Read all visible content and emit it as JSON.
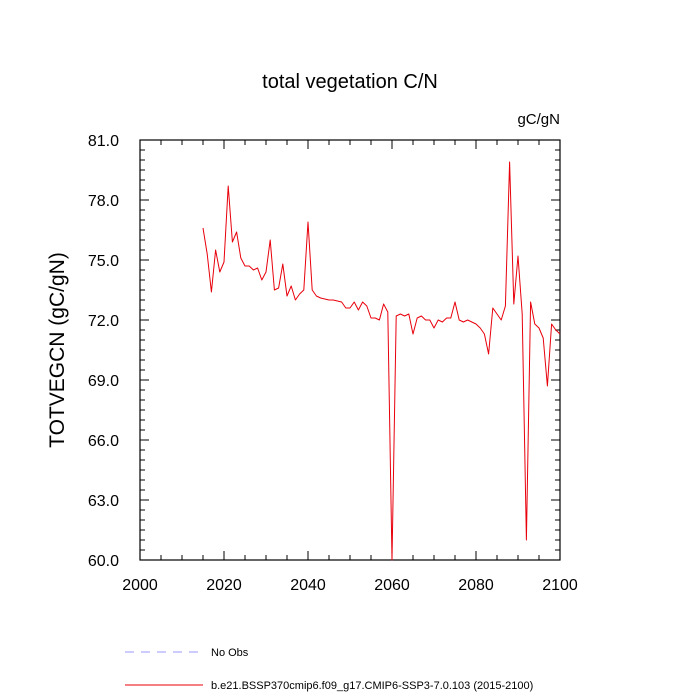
{
  "chart_data": {
    "type": "line",
    "title": "total vegetation C/N",
    "units": "gC/gN",
    "ylabel": "TOTVEGCN  (gC/gN)",
    "xlabel": "",
    "xlim": [
      2000,
      2100
    ],
    "ylim": [
      60,
      81
    ],
    "x_ticks": [
      2000,
      2020,
      2040,
      2060,
      2080,
      2100
    ],
    "x_tick_labels": [
      "2000",
      "2020",
      "2040",
      "2060",
      "2080",
      "2100"
    ],
    "y_ticks": [
      60,
      63,
      66,
      69,
      72,
      75,
      78,
      81
    ],
    "y_tick_labels": [
      "60.0",
      "63.0",
      "66.0",
      "69.0",
      "72.0",
      "75.0",
      "78.0",
      "81.0"
    ],
    "grid": false,
    "legend_position": "bottom",
    "legend": [
      {
        "label": "No Obs",
        "color": "#9999ff",
        "style": "dashed"
      },
      {
        "label": "b.e21.BSSP370cmip6.f09_g17.CMIP6-SSP3-7.0.103 (2015-2100)",
        "color": "#e8000b",
        "style": "solid"
      }
    ],
    "series": [
      {
        "name": "b.e21.BSSP370cmip6.f09_g17.CMIP6-SSP3-7.0.103 (2015-2100)",
        "color": "#e8000b",
        "x": [
          2015,
          2016,
          2017,
          2018,
          2019,
          2020,
          2021,
          2022,
          2023,
          2024,
          2025,
          2026,
          2027,
          2028,
          2029,
          2030,
          2031,
          2032,
          2033,
          2034,
          2035,
          2036,
          2037,
          2038,
          2039,
          2040,
          2041,
          2042,
          2043,
          2044,
          2045,
          2046,
          2047,
          2048,
          2049,
          2050,
          2051,
          2052,
          2053,
          2054,
          2055,
          2056,
          2057,
          2058,
          2059,
          2060,
          2061,
          2062,
          2063,
          2064,
          2065,
          2066,
          2067,
          2068,
          2069,
          2070,
          2071,
          2072,
          2073,
          2074,
          2075,
          2076,
          2077,
          2078,
          2079,
          2080,
          2081,
          2082,
          2083,
          2084,
          2085,
          2086,
          2087,
          2088,
          2089,
          2090,
          2091,
          2092,
          2093,
          2094,
          2095,
          2096,
          2097,
          2098,
          2099,
          2100
        ],
        "y": [
          76.6,
          75.3,
          73.4,
          75.5,
          74.4,
          74.9,
          78.7,
          75.9,
          76.4,
          75.1,
          74.7,
          74.7,
          74.5,
          74.6,
          74.0,
          74.4,
          76.0,
          73.5,
          73.6,
          74.8,
          73.2,
          73.7,
          73.0,
          73.3,
          73.5,
          76.9,
          73.5,
          73.2,
          73.1,
          73.05,
          73.0,
          73.0,
          72.95,
          72.9,
          72.6,
          72.6,
          72.9,
          72.5,
          72.9,
          72.7,
          72.1,
          72.1,
          72.0,
          72.8,
          72.4,
          60.0,
          72.2,
          72.3,
          72.2,
          72.3,
          71.3,
          72.1,
          72.2,
          72.0,
          72.0,
          71.6,
          72.0,
          71.9,
          72.1,
          72.1,
          72.9,
          72.0,
          71.9,
          72.0,
          71.9,
          71.8,
          71.6,
          71.3,
          70.3,
          72.6,
          72.3,
          72.0,
          72.7,
          79.9,
          72.8,
          75.2,
          72.3,
          61.0,
          72.9,
          71.8,
          71.6,
          71.1,
          68.7,
          71.8,
          71.5,
          71.3
        ]
      }
    ]
  }
}
